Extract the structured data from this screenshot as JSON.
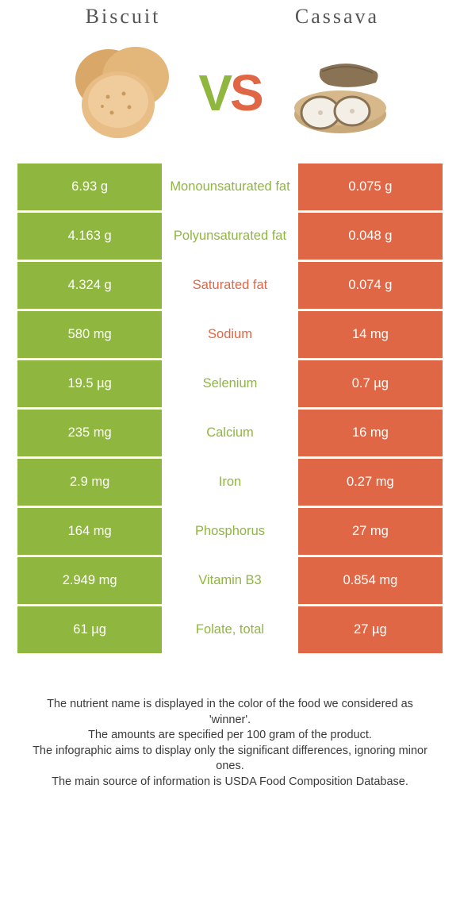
{
  "left_food": "Biscuit",
  "right_food": "Cassava",
  "vs": {
    "v": "V",
    "s": "S"
  },
  "colors": {
    "left": "#8fb63f",
    "right": "#e06745",
    "left_text": "#8fb63f",
    "right_text": "#e06745"
  },
  "rows": [
    {
      "left": "6.93 g",
      "label": "Monounsaturated fat",
      "right": "0.075 g",
      "winner": "left"
    },
    {
      "left": "4.163 g",
      "label": "Polyunsaturated fat",
      "right": "0.048 g",
      "winner": "left"
    },
    {
      "left": "4.324 g",
      "label": "Saturated fat",
      "right": "0.074 g",
      "winner": "right"
    },
    {
      "left": "580 mg",
      "label": "Sodium",
      "right": "14 mg",
      "winner": "right"
    },
    {
      "left": "19.5 µg",
      "label": "Selenium",
      "right": "0.7 µg",
      "winner": "left"
    },
    {
      "left": "235 mg",
      "label": "Calcium",
      "right": "16 mg",
      "winner": "left"
    },
    {
      "left": "2.9 mg",
      "label": "Iron",
      "right": "0.27 mg",
      "winner": "left"
    },
    {
      "left": "164 mg",
      "label": "Phosphorus",
      "right": "27 mg",
      "winner": "left"
    },
    {
      "left": "2.949 mg",
      "label": "Vitamin B3",
      "right": "0.854 mg",
      "winner": "left"
    },
    {
      "left": "61 µg",
      "label": "Folate, total",
      "right": "27 µg",
      "winner": "left"
    }
  ],
  "footer": [
    "The nutrient name is displayed in the color of the food we considered as 'winner'.",
    "The amounts are specified per 100 gram of the product.",
    "The infographic aims to display only the significant differences, ignoring minor ones.",
    "The main source of information is USDA Food Composition Database."
  ]
}
